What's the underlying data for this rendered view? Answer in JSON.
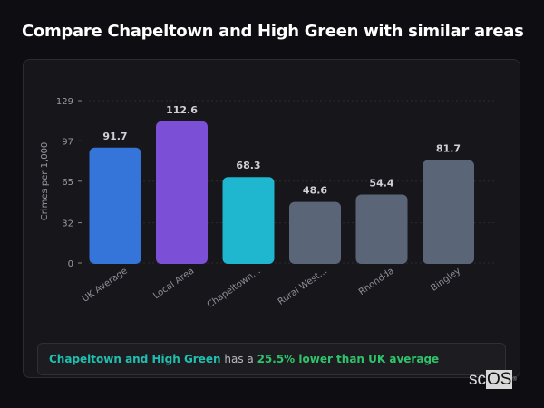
{
  "title": "Compare Chapeltown and High Green with similar areas",
  "chart_data": {
    "type": "bar",
    "ylabel": "Crimes per 1,000",
    "ylim": [
      0,
      129
    ],
    "yticks": [
      "0",
      "32",
      "65",
      "97",
      "129"
    ],
    "ytick_values": [
      0,
      32,
      65,
      97,
      129
    ],
    "categories": [
      "UK Average",
      "Local Area",
      "Chapeltown…",
      "Rural West…",
      "Rhondda",
      "Bingley"
    ],
    "values": [
      91.7,
      112.6,
      68.3,
      48.6,
      54.4,
      81.7
    ],
    "value_labels": [
      "91.7",
      "112.6",
      "68.3",
      "48.6",
      "54.4",
      "81.7"
    ],
    "colors": [
      "#3574d8",
      "#7b4fd6",
      "#1fb6cf",
      "#5a6678",
      "#5a6678",
      "#5a6678"
    ],
    "grid": true
  },
  "summary": {
    "area": "Chapeltown and High Green",
    "middle": " has a ",
    "difference": "25.5% lower than UK average"
  },
  "logo": {
    "sc": "sc",
    "os": "OS",
    "mark": "®"
  }
}
